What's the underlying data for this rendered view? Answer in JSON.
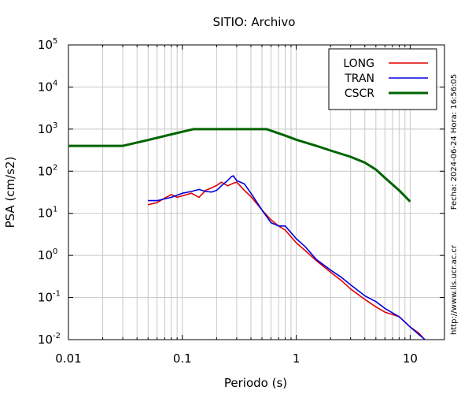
{
  "chart_data": {
    "type": "line",
    "title": "SITIO: Archivo",
    "xlabel": "Periodo (s)",
    "ylabel": "PSA (cm/s2)",
    "xscale": "log",
    "yscale": "log",
    "xlim": [
      0.01,
      20
    ],
    "ylim": [
      0.01,
      100000
    ],
    "grid": true,
    "x_ticks": [
      {
        "value": 0.01,
        "label": "0.01"
      },
      {
        "value": 0.1,
        "label": "0.1"
      },
      {
        "value": 1,
        "label": "1"
      },
      {
        "value": 10,
        "label": "10"
      }
    ],
    "y_ticks": [
      {
        "value": 0.01,
        "base": "10",
        "exp": "-2"
      },
      {
        "value": 0.1,
        "base": "10",
        "exp": "-1"
      },
      {
        "value": 1,
        "base": "10",
        "exp": "0"
      },
      {
        "value": 10,
        "base": "10",
        "exp": "1"
      },
      {
        "value": 100,
        "base": "10",
        "exp": "2"
      },
      {
        "value": 1000,
        "base": "10",
        "exp": "3"
      },
      {
        "value": 10000,
        "base": "10",
        "exp": "4"
      },
      {
        "value": 100000,
        "base": "10",
        "exp": "5"
      }
    ],
    "legend_position": "top-right",
    "series": [
      {
        "name": "LONG",
        "color": "#e00000",
        "x": [
          0.05,
          0.06,
          0.07,
          0.08,
          0.09,
          0.1,
          0.12,
          0.14,
          0.16,
          0.18,
          0.2,
          0.22,
          0.25,
          0.28,
          0.3,
          0.35,
          0.4,
          0.5,
          0.6,
          0.7,
          0.8,
          1.0,
          1.2,
          1.5,
          2.0,
          2.5,
          3.0,
          4.0,
          5.0,
          6.0,
          8.0,
          10.0,
          12.0,
          13.0
        ],
        "y": [
          16,
          18,
          23,
          28,
          24,
          26,
          30,
          24,
          35,
          40,
          46,
          55,
          45,
          52,
          55,
          35,
          25,
          12,
          7,
          5,
          4,
          2,
          1.3,
          0.75,
          0.4,
          0.25,
          0.16,
          0.09,
          0.06,
          0.045,
          0.035,
          0.02,
          0.014,
          0.011
        ]
      },
      {
        "name": "TRAN",
        "color": "#0000dd",
        "x": [
          0.05,
          0.06,
          0.07,
          0.08,
          0.09,
          0.1,
          0.12,
          0.14,
          0.16,
          0.18,
          0.2,
          0.22,
          0.25,
          0.27,
          0.28,
          0.3,
          0.35,
          0.4,
          0.5,
          0.6,
          0.7,
          0.8,
          1.0,
          1.2,
          1.5,
          2.0,
          2.5,
          3.0,
          4.0,
          5.0,
          6.0,
          8.0,
          10.0,
          12.0,
          13.5
        ],
        "y": [
          20,
          20,
          22,
          24,
          27,
          30,
          33,
          37,
          33,
          32,
          35,
          45,
          60,
          75,
          78,
          60,
          50,
          30,
          12,
          6,
          5,
          5,
          2.5,
          1.6,
          0.8,
          0.45,
          0.3,
          0.2,
          0.11,
          0.08,
          0.055,
          0.035,
          0.02,
          0.013,
          0.01
        ]
      },
      {
        "name": "CSCR",
        "color": "#006400",
        "x": [
          0.01,
          0.03,
          0.05,
          0.08,
          0.125,
          0.2,
          0.3,
          0.55,
          0.8,
          1.0,
          1.5,
          2.0,
          3.0,
          4.0,
          5.0,
          6.0,
          8.0,
          10.0
        ],
        "y": [
          400,
          400,
          550,
          750,
          1000,
          1000,
          1000,
          1000,
          700,
          560,
          400,
          310,
          220,
          160,
          110,
          70,
          35,
          19
        ]
      }
    ],
    "side_text": "Fecha: 2024-06-24 Hora: 16:56:05",
    "url_text": "http://www.lis.ucr.ac.cr"
  }
}
